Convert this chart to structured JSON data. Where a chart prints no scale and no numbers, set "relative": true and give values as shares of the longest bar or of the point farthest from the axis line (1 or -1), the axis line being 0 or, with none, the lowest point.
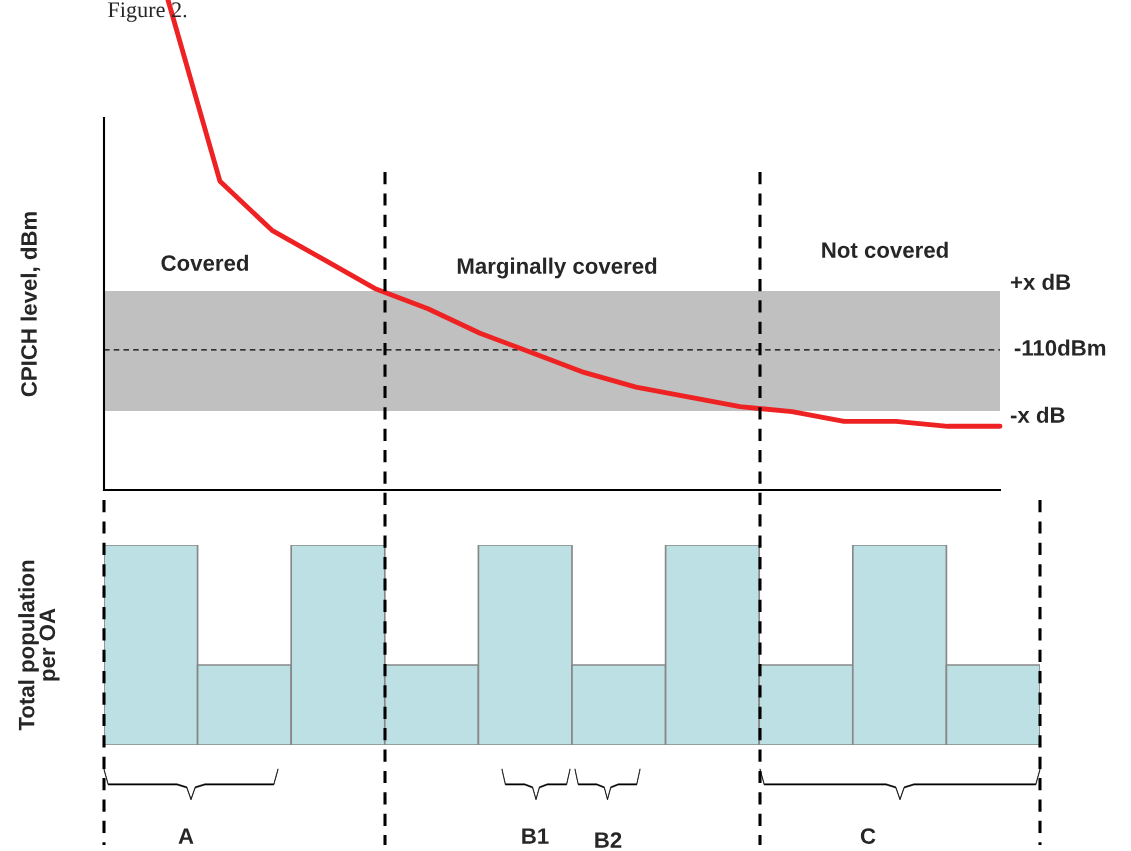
{
  "chart_data": [
    {
      "type": "line",
      "title": "Figure 2.",
      "ylabel": "CPICH level, dBm",
      "relative": true,
      "marker": "none",
      "line_style": "solid",
      "categories": [
        null,
        null,
        null,
        null,
        null,
        null,
        null,
        null,
        null,
        null,
        null,
        null,
        null,
        null,
        null,
        null,
        null
      ],
      "series": [
        {
          "color": "#ee2222",
          "values": [
            1.0,
            0.63,
            0.53,
            0.47,
            0.41,
            0.37,
            0.32,
            0.28,
            0.24,
            0.21,
            0.19,
            0.17,
            0.16,
            0.14,
            0.14,
            0.13,
            0.13
          ]
        }
      ],
      "bands": [
        {
          "axis": "y",
          "from": 0.161,
          "to": 0.406,
          "color": "#c0c0c0"
        }
      ],
      "ref_lines": [
        {
          "axis": "y",
          "value": 0.286,
          "label": "-110dBm",
          "color": "#000000",
          "line_style": "dashed"
        }
      ],
      "annotations": [
        "Covered",
        "Marginally covered",
        "Not covered",
        "+x dB",
        "-x dB"
      ]
    },
    {
      "type": "bar",
      "ylabel": "Total population\nper OA",
      "relative": true,
      "categories": [
        null,
        null,
        null,
        null,
        null,
        null,
        null,
        null,
        null,
        null
      ],
      "values": [
        1,
        0.4,
        1,
        0.4,
        1,
        0.4,
        1,
        0.4,
        1,
        0.4
      ],
      "color": "#bce0e3",
      "annotations": [
        "A",
        "B1",
        "B2",
        "C"
      ]
    }
  ]
}
